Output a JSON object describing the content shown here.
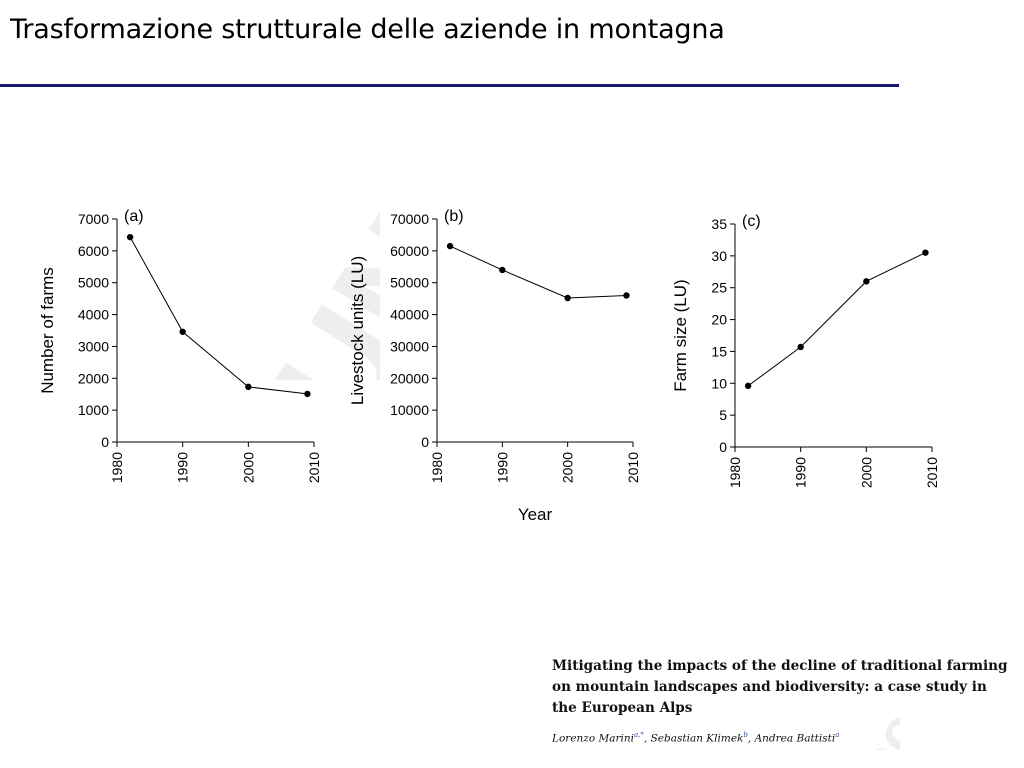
{
  "slide": {
    "title": "Trasformazione strutturale delle aziende in montagna"
  },
  "shared_xlabel": "Year",
  "chart_data": [
    {
      "type": "line",
      "panel_label": "(a)",
      "ylabel": "Number of farms",
      "ylim": [
        0,
        7000
      ],
      "yticks": [
        0,
        1000,
        2000,
        3000,
        4000,
        5000,
        6000,
        7000
      ],
      "xlim": [
        1980,
        2010
      ],
      "xticks": [
        1980,
        1990,
        2000,
        2010
      ],
      "x": [
        1982,
        1990,
        2000,
        2009
      ],
      "values": [
        6430,
        3460,
        1730,
        1510
      ]
    },
    {
      "type": "line",
      "panel_label": "(b)",
      "ylabel": "Livestock units (LU)",
      "ylim": [
        0,
        70000
      ],
      "yticks": [
        0,
        10000,
        20000,
        30000,
        40000,
        50000,
        60000,
        70000
      ],
      "xlim": [
        1980,
        2010
      ],
      "xticks": [
        1980,
        1990,
        2000,
        2010
      ],
      "x": [
        1982,
        1990,
        2000,
        2009
      ],
      "values": [
        61500,
        54000,
        45200,
        46000
      ]
    },
    {
      "type": "line",
      "panel_label": "(c)",
      "ylabel": "Farm size (LU)",
      "ylim": [
        0,
        35
      ],
      "yticks": [
        0,
        5,
        10,
        15,
        20,
        25,
        30,
        35
      ],
      "xlim": [
        1980,
        2010
      ],
      "xticks": [
        1980,
        1990,
        2000,
        2010
      ],
      "x": [
        1982,
        1990,
        2000,
        2009
      ],
      "values": [
        9.6,
        15.7,
        26.0,
        30.5
      ]
    }
  ],
  "citation": {
    "title": "Mitigating the impacts of the decline of traditional farming on mountain landscapes and biodiversity: a case study in the European Alps",
    "author1": "Lorenzo Marini",
    "author1_sup": "a,*",
    "author2": "Sebastian Klimek",
    "author2_sup": "b",
    "author3": "Andrea Battisti",
    "author3_sup": "a"
  }
}
